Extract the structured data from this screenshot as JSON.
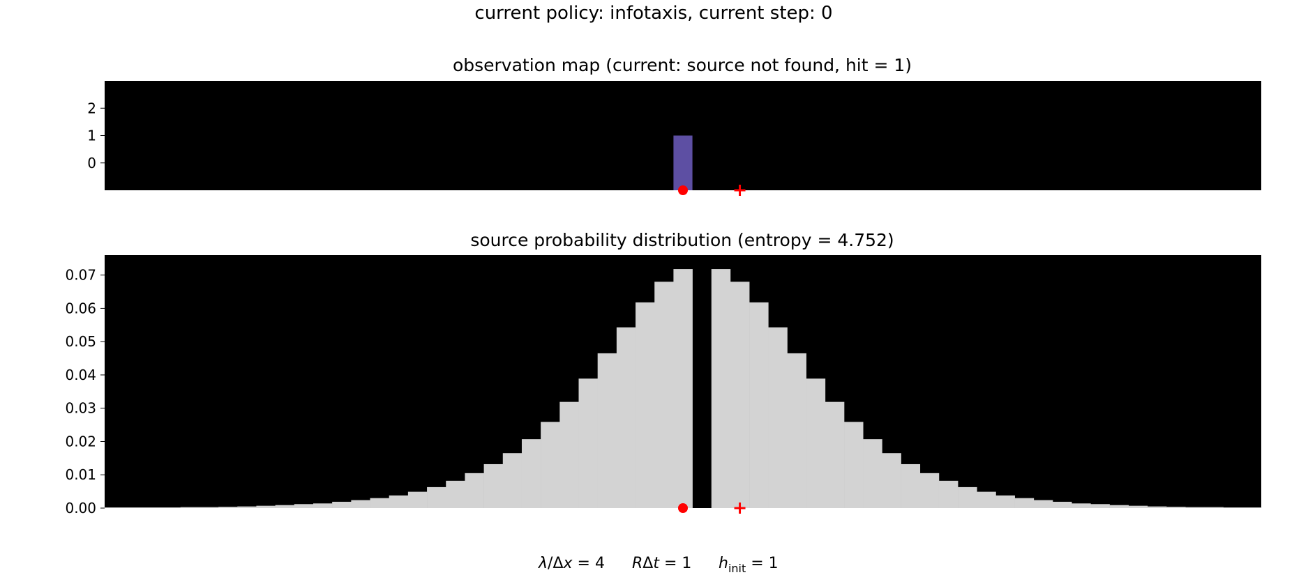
{
  "figure": {
    "suptitle": "current policy: infotaxis, current step: 0",
    "footer": {
      "lambda": {
        "italic": "λ",
        "mid": "/Δ",
        "italic2": "x",
        "rest": " = 4"
      },
      "rate": {
        "italic": "R",
        "mid": "Δ",
        "italic2": "t",
        "rest": " = 1"
      },
      "hinit": {
        "italic": "h",
        "sub": "init",
        "rest": " = 1"
      }
    }
  },
  "colors": {
    "background": "#000000",
    "hit_bar": "#5d4fa3",
    "probability_bar": "#d3d3d3",
    "agent_marker": "#ff0000",
    "source_marker": "#ff0000"
  },
  "chart_data": [
    {
      "type": "bar",
      "title": "observation map (current: source not found, hit = 1)",
      "xlabel": "",
      "ylabel": "",
      "y_ticks": [
        "0",
        "1",
        "2"
      ],
      "ylim": [
        -1,
        3
      ],
      "grid": false,
      "x": [
        0
      ],
      "values": [
        1
      ],
      "observed_cell": 0,
      "xlim": [
        -30,
        30
      ],
      "agent_position": 0,
      "source_position": 3,
      "agent_marker": "red-dot",
      "source_marker": "red-plus"
    },
    {
      "type": "bar",
      "title": "source probability distribution (entropy = 4.752)",
      "xlabel": "",
      "ylabel": "",
      "y_ticks": [
        "0.00",
        "0.01",
        "0.02",
        "0.03",
        "0.04",
        "0.05",
        "0.06",
        "0.07"
      ],
      "ylim": [
        0,
        0.076
      ],
      "grid": false,
      "xlim": [
        -30,
        30
      ],
      "x": [
        -30,
        -29,
        -28,
        -27,
        -26,
        -25,
        -24,
        -23,
        -22,
        -21,
        -20,
        -19,
        -18,
        -17,
        -16,
        -15,
        -14,
        -13,
        -12,
        -11,
        -10,
        -9,
        -8,
        -7,
        -6,
        -5,
        -4,
        -3,
        -2,
        -1,
        0,
        1,
        2,
        3,
        4,
        5,
        6,
        7,
        8,
        9,
        10,
        11,
        12,
        13,
        14,
        15,
        16,
        17,
        18,
        19,
        20,
        21,
        22,
        23,
        24,
        25,
        26,
        27,
        28,
        29,
        30
      ],
      "values": [
        0.0002,
        0.0002,
        0.0002,
        0.0002,
        0.0003,
        0.0003,
        0.0004,
        0.0005,
        0.0007,
        0.0009,
        0.0012,
        0.0014,
        0.0019,
        0.0024,
        0.003,
        0.0038,
        0.0049,
        0.0063,
        0.0082,
        0.0105,
        0.0132,
        0.0165,
        0.0207,
        0.0259,
        0.0319,
        0.0389,
        0.0465,
        0.0543,
        0.0618,
        0.068,
        0.0718,
        0,
        0.0718,
        0.068,
        0.0618,
        0.0543,
        0.0465,
        0.0389,
        0.0319,
        0.0259,
        0.0207,
        0.0165,
        0.0132,
        0.0105,
        0.0082,
        0.0063,
        0.0049,
        0.0038,
        0.003,
        0.0024,
        0.0019,
        0.0014,
        0.0012,
        0.0009,
        0.0007,
        0.0005,
        0.0004,
        0.0003,
        0.0003,
        0.0002,
        0.0002
      ],
      "agent_position": 0,
      "source_position": 3,
      "agent_marker": "red-dot",
      "source_marker": "red-plus"
    }
  ]
}
